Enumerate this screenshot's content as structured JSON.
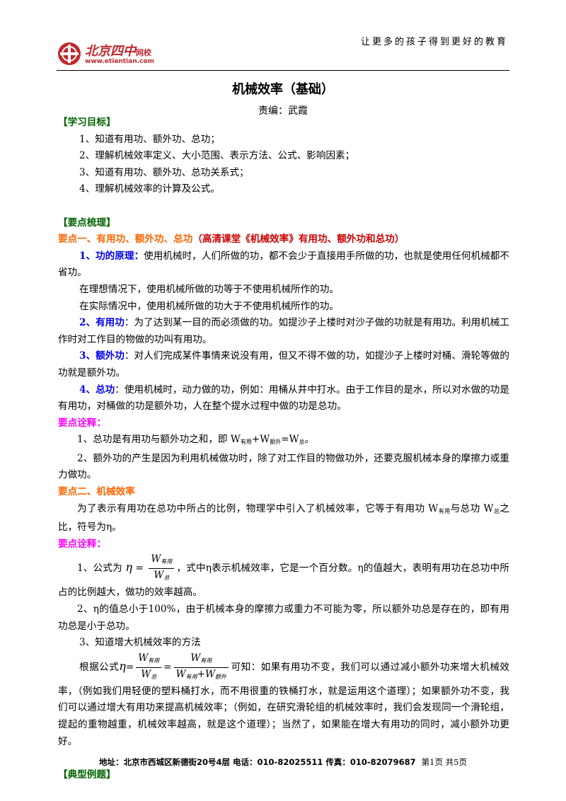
{
  "header": {
    "logo_name": "北京四中",
    "logo_suffix": "网校",
    "logo_url": "www.etiantian.com",
    "slogan": "让更多的孩子得到更好的教育"
  },
  "title": "机械效率（基础）",
  "author": "责编：武霞",
  "objectives": {
    "heading": "【学习目标】",
    "items": [
      "1、知道有用功、额外功、总功；",
      "2、理解机械效率定义、大小范围、表示方法、公式、影响因素；",
      "3、知道有用功、额外功、总功关系式；",
      "4、理解机械效率的计算及公式。"
    ]
  },
  "summary": {
    "heading": "【要点梳理】",
    "point1": {
      "title": "要点一、有用功、额外功、总功",
      "note": "（高清课堂《机械效率》有用功、额外功和总功）",
      "principle": {
        "label": "1、功的原理：",
        "text": "使用机械时，人们所做的功，都不会少于直接用手所做的功，也就是使用任何机械都不省功。"
      },
      "ideal": "在理想情况下，使用机械所做的功等于不使用机械所作的功。",
      "real": "在实际情况中，使用机械所做的功大于不使用机械所作的功。",
      "items": [
        {
          "label": "2、有用功",
          "text": "：为了达到某一目的而必须做的功。如提沙子上楼时对沙子做的功就是有用功。利用机械工作时对工作目的物做的功叫有用功。"
        },
        {
          "label": "3、额外功",
          "text": "：对人们完成某件事情来说没有用，但又不得不做的功，如提沙子上楼时对桶、滑轮等做的功就是额外功。"
        },
        {
          "label": "4、总功",
          "text": "：使用机械时，动力做的功，例如：用桶从井中打水。由于工作目的是水，所以对水做的功是有用功，对桶做的功是额外功，人在整个提水过程中做的功是总功。"
        }
      ]
    },
    "notes1": {
      "heading": "要点诠释：",
      "item1": [
        "1、总功是有用功与额外功之和，即 W",
        "有用",
        "+W",
        "额外",
        "=W",
        "总",
        "。"
      ],
      "item2": "2、额外功的产生是因为利用机械做功时，除了对工作目的物做功外，还要克服机械本身的摩擦力或重力做功。"
    },
    "point2": {
      "title": "要点二、机械效率",
      "text": [
        "为了表示有用功在总功中所占的比例，物理学中引入了机械效率，它等于有用功 W",
        "有用",
        "与总功 W",
        "总",
        "之比，符号为η。"
      ]
    },
    "notes2": {
      "heading": "要点诠释：",
      "item1": {
        "before": "1、公式为",
        "after": "，式中η表示机械效率，它是一个百分数。η的值越大，表明有用功在总功中所占的比例越大，做功的效率越高。"
      },
      "item2": "2、η的值总小于100%，由于机械本身的摩擦力或重力不可能为零，所以额外功总是存在的，即有用功总是小于总功。",
      "item3": {
        "title": "3、知道增大机械效率的方法",
        "before": "根据公式",
        "after": "可知：如果有用功不变，我们可以通过减小额外功来增大机械效率，（例如我们用轻便的塑料桶打水，而不用很重的铁桶打水，就是运用这个道理）；如果额外功不变，我们可以通过增大有用功来提高机械效率；（例如，在研究滑轮组的机械效率时，我们会发现同一个滑轮组，提起的重物越重，机械效率越高，就是这个道理）；当然了，如果能在增大有用功的同时，减小额外功更好。"
      },
      "formula": {
        "eta": "η",
        "eq": "=",
        "w": "W",
        "useful": "有用",
        "total": "总",
        "plus": "+",
        "extra": "额外"
      }
    }
  },
  "examples": {
    "heading": "【典型例题】"
  },
  "footer": {
    "address": "地址：北京市西城区新德街20号4层  电话：010-82025511  传真：010-82079687",
    "page": "第1页  共5页"
  }
}
